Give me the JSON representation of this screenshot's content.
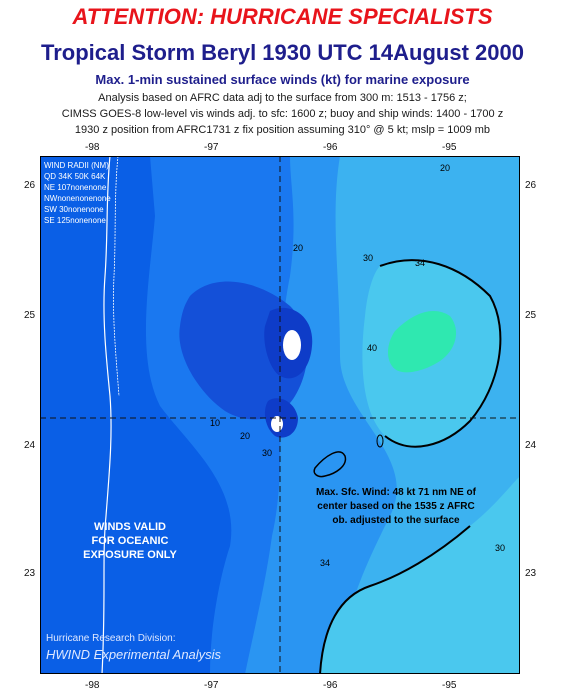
{
  "header": {
    "attention": "ATTENTION: HURRICANE SPECIALISTS",
    "title": "Tropical Storm Beryl 1930 UTC 14August 2000",
    "subtitle": "Max. 1-min sustained surface winds (kt) for marine exposure",
    "note1": "Analysis based on AFRC data adj to the surface from 300 m: 1513 - 1756 z;",
    "note2": "CIMSS GOES-8 low-level vis winds adj. to sfc: 1600 z; buoy and ship winds: 1400 - 1700 z",
    "note3": "1930 z position from AFRC1731 z  fix position assuming 310° @ 5 kt; mslp = 1009 mb"
  },
  "axes": {
    "lon_ticks": [
      "-98",
      "-97",
      "-96",
      "-95"
    ],
    "lat_ticks": [
      "26",
      "25",
      "24",
      "23"
    ]
  },
  "wind_radii": {
    "title": "WIND RADII (NM)",
    "header": "QD 34K 50K 64K",
    "rows": [
      "NE 107nonenone",
      "NWnonenonenone",
      "SW  30nonenone",
      "SE 125nonenone"
    ]
  },
  "contour_labels": [
    "20",
    "30",
    "34",
    "40",
    "10",
    "20",
    "30",
    "34",
    "30",
    "20"
  ],
  "validity_note": [
    "WINDS VALID",
    "FOR OCEANIC",
    "EXPOSURE ONLY"
  ],
  "max_wind_note": [
    "Max. Sfc. Wind: 48 kt 71 nm NE of",
    "center based on the 1535 z AFRC",
    "ob. adjusted to the surface"
  ],
  "credit": {
    "division": "Hurricane Research Division:",
    "product": "HWIND Experimental Analysis"
  },
  "colors": {
    "attention": "#e8141b",
    "title": "#1e1e8c",
    "wind_low": "#0a5fe6",
    "wind_high": "#2fe8b0"
  }
}
